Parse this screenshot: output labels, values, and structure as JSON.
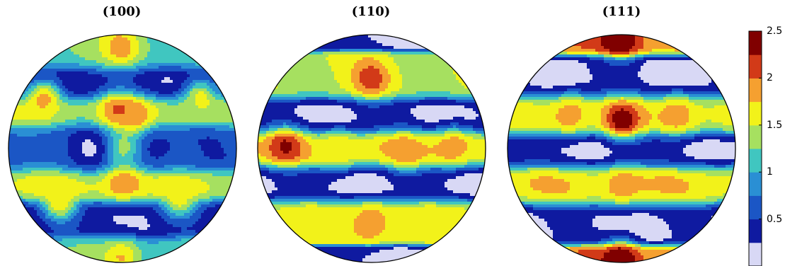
{
  "chart_data": [
    {
      "type": "heatmap",
      "title": "(100)",
      "bands": [
        {
          "level": 1.3,
          "center": 0.8,
          "spread": 0.07
        },
        {
          "level": 0.3,
          "center": 0.58,
          "spread": 0.1
        },
        {
          "level": 1.5,
          "center": 0.33,
          "spread": 0.08
        },
        {
          "level": 0.6,
          "center": 0.0,
          "spread": 0.12
        },
        {
          "level": 1.6,
          "center": -0.33,
          "spread": 0.08
        },
        {
          "level": 0.3,
          "center": -0.62,
          "spread": 0.1
        },
        {
          "level": 1.2,
          "center": -0.88,
          "spread": 0.06
        }
      ],
      "peaks": [
        {
          "x": 0.0,
          "y": 0.9,
          "level": 1.9
        },
        {
          "x": -0.68,
          "y": 0.45,
          "level": 1.9
        },
        {
          "x": 0.68,
          "y": 0.45,
          "level": 1.7
        },
        {
          "x": -0.05,
          "y": 0.33,
          "level": 2.0
        },
        {
          "x": 0.1,
          "y": 0.28,
          "level": 1.9
        },
        {
          "x": 0.0,
          "y": -0.3,
          "level": 2.1
        },
        {
          "x": -0.55,
          "y": -0.48,
          "level": 1.6
        },
        {
          "x": 0.5,
          "y": -0.45,
          "level": 1.5
        },
        {
          "x": 0.0,
          "y": 0.0,
          "level": 1.4
        },
        {
          "x": -0.3,
          "y": 0.0,
          "level": 0.3
        },
        {
          "x": 0.3,
          "y": 0.0,
          "level": 0.3
        },
        {
          "x": 0.0,
          "y": -0.95,
          "level": 1.8
        }
      ]
    },
    {
      "type": "heatmap",
      "title": "(110)",
      "bands": [
        {
          "level": 0.2,
          "center": 0.95,
          "spread": 0.04
        },
        {
          "level": 1.5,
          "center": 0.62,
          "spread": 0.1
        },
        {
          "level": 0.2,
          "center": 0.28,
          "spread": 0.09
        },
        {
          "level": 1.7,
          "center": 0.0,
          "spread": 0.09
        },
        {
          "level": 0.2,
          "center": -0.3,
          "spread": 0.09
        },
        {
          "level": 1.6,
          "center": -0.62,
          "spread": 0.09
        },
        {
          "level": 0.2,
          "center": -0.95,
          "spread": 0.04
        }
      ],
      "peaks": [
        {
          "x": 0.0,
          "y": 0.62,
          "level": 2.1
        },
        {
          "x": -0.75,
          "y": 0.02,
          "level": 2.2
        },
        {
          "x": 0.72,
          "y": 0.02,
          "level": 2.0
        },
        {
          "x": 0.0,
          "y": -0.65,
          "level": 2.1
        },
        {
          "x": -0.3,
          "y": -0.02,
          "level": 1.8
        },
        {
          "x": 0.3,
          "y": -0.02,
          "level": 1.8
        }
      ]
    },
    {
      "type": "heatmap",
      "title": "(111)",
      "bands": [
        {
          "level": 2.0,
          "center": 0.92,
          "spread": 0.05
        },
        {
          "level": 0.2,
          "center": 0.62,
          "spread": 0.1
        },
        {
          "level": 1.6,
          "center": 0.3,
          "spread": 0.1
        },
        {
          "level": 0.2,
          "center": -0.02,
          "spread": 0.09
        },
        {
          "level": 1.7,
          "center": -0.32,
          "spread": 0.1
        },
        {
          "level": 0.2,
          "center": -0.65,
          "spread": 0.1
        },
        {
          "level": 2.0,
          "center": -0.95,
          "spread": 0.05
        }
      ],
      "peaks": [
        {
          "x": 0.0,
          "y": 0.97,
          "level": 2.6
        },
        {
          "x": 0.0,
          "y": -0.97,
          "level": 2.6
        },
        {
          "x": 0.0,
          "y": 0.25,
          "level": 2.4
        },
        {
          "x": -0.45,
          "y": 0.3,
          "level": 2.0
        },
        {
          "x": 0.5,
          "y": 0.3,
          "level": 2.0
        },
        {
          "x": 0.0,
          "y": -0.33,
          "level": 2.0
        }
      ]
    }
  ],
  "colorbar": {
    "min": 0,
    "max": 2.5,
    "ticks": [
      "2.5",
      "2",
      "1.5",
      "1",
      "0.5"
    ],
    "tick_values": [
      2.5,
      2,
      1.5,
      1,
      0.5
    ],
    "colors": [
      "#d8d8f5",
      "#0f1aa0",
      "#1b56c5",
      "#2a8fd4",
      "#40c6c0",
      "#a6e060",
      "#f2f21a",
      "#f5a030",
      "#d23a18",
      "#800000"
    ]
  }
}
